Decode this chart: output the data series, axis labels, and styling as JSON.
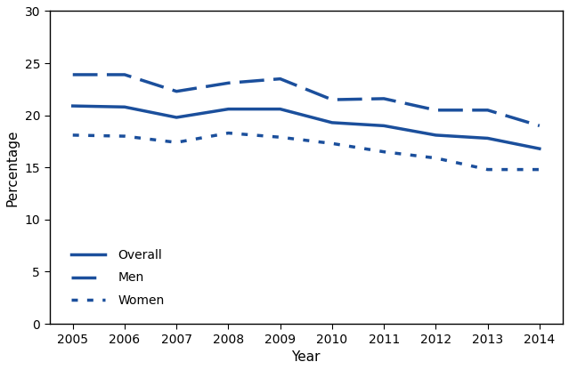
{
  "years": [
    2005,
    2006,
    2007,
    2008,
    2009,
    2010,
    2011,
    2012,
    2013,
    2014
  ],
  "overall": [
    20.9,
    20.8,
    19.8,
    20.6,
    20.6,
    19.3,
    19.0,
    18.1,
    17.8,
    16.8
  ],
  "men": [
    23.9,
    23.9,
    22.3,
    23.1,
    23.5,
    21.5,
    21.6,
    20.5,
    20.5,
    19.0
  ],
  "women": [
    18.1,
    18.0,
    17.4,
    18.3,
    17.9,
    17.3,
    16.5,
    15.9,
    14.8,
    14.8
  ],
  "color": "#1b4f9c",
  "line_width": 2.5,
  "xlabel": "Year",
  "ylabel": "Percentage",
  "ylim": [
    0,
    30
  ],
  "yticks": [
    0,
    5,
    10,
    15,
    20,
    25,
    30
  ],
  "legend_labels": [
    "Overall",
    "Men",
    "Women"
  ],
  "title": "",
  "background_color": "#ffffff",
  "men_dash": [
    8,
    3
  ],
  "women_dot": [
    2,
    3
  ]
}
